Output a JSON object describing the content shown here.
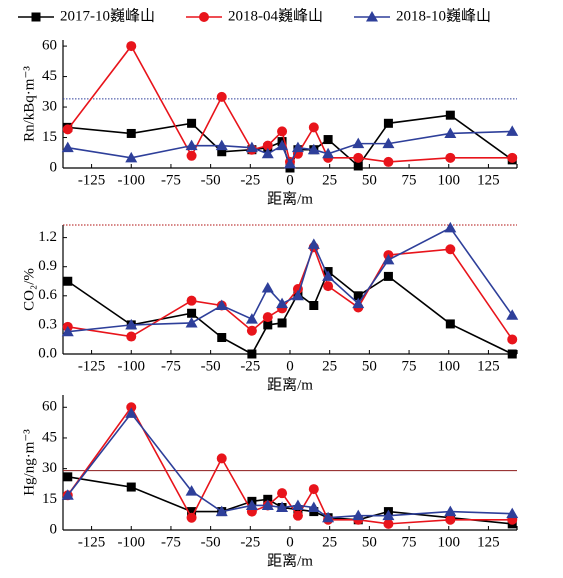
{
  "chart_data": [
    {
      "type": "line",
      "ylabel": "Rn/kBq·m⁻³",
      "xlabel": "距离/m",
      "x": [
        -140,
        -100,
        -62,
        -43,
        -24,
        -14,
        -5,
        0,
        5,
        15,
        24,
        43,
        62,
        101,
        140
      ],
      "xlim": [
        -143,
        143
      ],
      "xticks": [
        -125,
        -100,
        -75,
        -50,
        -25,
        0,
        25,
        50,
        75,
        100,
        125
      ],
      "ylim": [
        0,
        63
      ],
      "yticks": [
        0,
        15,
        30,
        45,
        60
      ],
      "ref_line": {
        "value": 34,
        "color": "#2e3f9a",
        "dash": "dotted"
      },
      "series": [
        {
          "name": "2017-10巍峰山",
          "color": "#000000",
          "marker": "square",
          "values": [
            20,
            17,
            22,
            8,
            9,
            10,
            13,
            0,
            9,
            9,
            14,
            1,
            22,
            26,
            4
          ]
        },
        {
          "name": "2018-04巍峰山",
          "color": "#e8141b",
          "marker": "circle",
          "values": [
            19,
            60,
            6,
            35,
            9,
            11,
            18,
            3,
            7,
            20,
            5,
            5,
            3,
            5,
            5
          ]
        },
        {
          "name": "2018-10巍峰山",
          "color": "#2e3f9a",
          "marker": "triangle",
          "values": [
            10,
            5,
            11,
            11,
            10,
            7,
            11,
            2,
            10,
            9,
            7,
            12,
            12,
            17,
            18
          ]
        }
      ]
    },
    {
      "type": "line",
      "ylabel": "CO₂/%",
      "xlabel": "距离/m",
      "x": [
        -140,
        -100,
        -62,
        -43,
        -24,
        -14,
        -5,
        5,
        15,
        24,
        43,
        62,
        101,
        140
      ],
      "xlim": [
        -143,
        143
      ],
      "xticks": [
        -125,
        -100,
        -75,
        -50,
        -25,
        0,
        25,
        50,
        75,
        100,
        125
      ],
      "ylim": [
        0,
        1.33
      ],
      "yticks": [
        {
          "value": 0,
          "label": "0.0"
        },
        0.3,
        0.6,
        0.9,
        1.2
      ],
      "ref_line": {
        "value": 1.33,
        "color": "#b01010",
        "dash": "dotted"
      },
      "series": [
        {
          "name": "2017-10巍峰山",
          "color": "#000000",
          "marker": "square",
          "values": [
            0.75,
            0.3,
            0.42,
            0.17,
            0.0,
            0.3,
            0.32,
            0.62,
            0.5,
            0.85,
            0.6,
            0.8,
            0.31,
            0.0
          ]
        },
        {
          "name": "2018-04巍峰山",
          "color": "#e8141b",
          "marker": "circle",
          "values": [
            0.28,
            0.18,
            0.55,
            0.5,
            0.24,
            0.38,
            0.47,
            0.67,
            1.1,
            0.7,
            0.48,
            1.02,
            1.08,
            0.15
          ]
        },
        {
          "name": "2018-10巍峰山",
          "color": "#2e3f9a",
          "marker": "triangle",
          "values": [
            0.23,
            0.3,
            0.32,
            0.5,
            0.36,
            0.68,
            0.52,
            0.6,
            1.13,
            0.8,
            0.52,
            0.97,
            1.3,
            0.4
          ]
        }
      ]
    },
    {
      "type": "line",
      "ylabel": "Hg/ng·m⁻³",
      "xlabel": "距离/m",
      "x": [
        -140,
        -100,
        -62,
        -43,
        -24,
        -14,
        -5,
        5,
        15,
        24,
        43,
        62,
        101,
        140
      ],
      "xlim": [
        -143,
        143
      ],
      "xticks": [
        -125,
        -100,
        -75,
        -50,
        -25,
        0,
        25,
        50,
        75,
        100,
        125
      ],
      "ylim": [
        0,
        66
      ],
      "yticks": [
        0,
        15,
        30,
        45,
        60
      ],
      "ref_line": {
        "value": 29,
        "color": "#8b1a1a",
        "dash": "solid"
      },
      "series": [
        {
          "name": "2017-10巍峰山",
          "color": "#000000",
          "marker": "square",
          "values": [
            26,
            21,
            9,
            9,
            14,
            15,
            11,
            10,
            9,
            6,
            5,
            9,
            6,
            3
          ]
        },
        {
          "name": "2018-04巍峰山",
          "color": "#e8141b",
          "marker": "circle",
          "values": [
            17,
            60,
            6,
            35,
            9,
            12,
            18,
            7,
            20,
            5,
            5,
            3,
            5,
            5
          ]
        },
        {
          "name": "2018-10巍峰山",
          "color": "#2e3f9a",
          "marker": "triangle",
          "values": [
            17,
            57,
            19,
            9,
            12,
            12,
            11,
            12,
            11,
            6,
            7,
            7,
            9,
            8
          ]
        }
      ]
    }
  ]
}
